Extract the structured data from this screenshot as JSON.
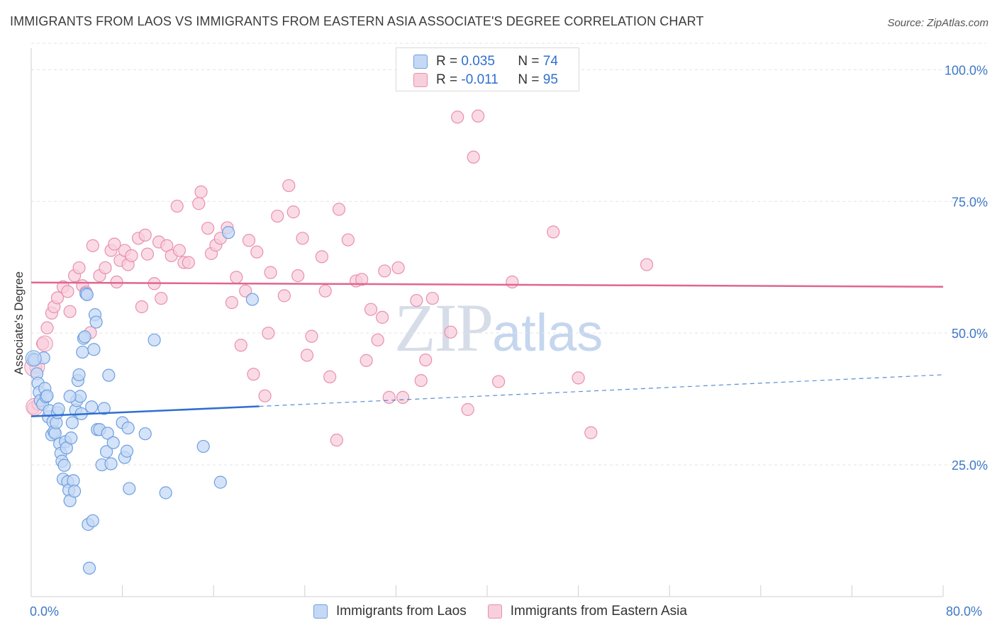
{
  "title": "IMMIGRANTS FROM LAOS VS IMMIGRANTS FROM EASTERN ASIA ASSOCIATE'S DEGREE CORRELATION CHART",
  "source": "Source: ZipAtlas.com",
  "watermark": {
    "zip": "ZIP",
    "atlas": "atlas"
  },
  "legend_top": [
    {
      "r_label": "R = ",
      "r_value": "0.035",
      "n_label": "N = ",
      "n_value": "74"
    },
    {
      "r_label": "R = ",
      "r_value": "-0.011",
      "n_label": "N = ",
      "n_value": "95"
    }
  ],
  "colors": {
    "laos_fill": "#c5d9f5",
    "laos_stroke": "#6f9fe0",
    "laos_line": "#2f6fd0",
    "asia_fill": "#f8cfdc",
    "asia_stroke": "#e890ad",
    "asia_line": "#e0668e",
    "grid": "#e3e3e3",
    "tick_label": "#3f78c8"
  },
  "chart_data": {
    "type": "scatter",
    "title": "IMMIGRANTS FROM LAOS VS IMMIGRANTS FROM EASTERN ASIA ASSOCIATE'S DEGREE CORRELATION CHART",
    "xlabel": "",
    "ylabel": "Associate's Degree",
    "xlim": [
      0,
      80
    ],
    "ylim": [
      0,
      106.5
    ],
    "x_tick_labels": [
      "0.0%",
      "80.0%"
    ],
    "y_ticks": [
      25,
      50,
      75,
      100
    ],
    "y_tick_labels": [
      "25.0%",
      "50.0%",
      "75.0%",
      "100.0%"
    ],
    "legend_position": "top-center",
    "series": [
      {
        "name": "Immigrants from Laos",
        "r": 0.035,
        "n": 74,
        "trend": {
          "x0": 0,
          "y0": 34.2,
          "x1": 20,
          "y1": 36.1,
          "dashed_to_x": 80,
          "dashed_to_y": 42.1
        },
        "points": [
          [
            0.2,
            45.1
          ],
          [
            0.3,
            44.9
          ],
          [
            0.5,
            42.3
          ],
          [
            0.6,
            40.5
          ],
          [
            0.7,
            38.8
          ],
          [
            0.8,
            37.2
          ],
          [
            1.0,
            36.5
          ],
          [
            1.2,
            39.5
          ],
          [
            1.3,
            37.9
          ],
          [
            1.4,
            38.1
          ],
          [
            1.5,
            34.1
          ],
          [
            1.6,
            35.3
          ],
          [
            1.8,
            30.7
          ],
          [
            1.9,
            33.2
          ],
          [
            2.0,
            31.3
          ],
          [
            2.1,
            31.0
          ],
          [
            2.2,
            33.0
          ],
          [
            2.3,
            34.9
          ],
          [
            2.4,
            35.6
          ],
          [
            2.5,
            29.0
          ],
          [
            2.6,
            27.2
          ],
          [
            2.7,
            25.7
          ],
          [
            2.8,
            22.3
          ],
          [
            2.9,
            24.9
          ],
          [
            3.0,
            29.4
          ],
          [
            3.1,
            28.2
          ],
          [
            3.2,
            21.8
          ],
          [
            3.3,
            20.2
          ],
          [
            3.4,
            18.2
          ],
          [
            3.5,
            30.1
          ],
          [
            3.6,
            33.0
          ],
          [
            3.7,
            22.0
          ],
          [
            3.8,
            20.0
          ],
          [
            3.9,
            35.4
          ],
          [
            4.0,
            37.2
          ],
          [
            4.1,
            41.0
          ],
          [
            4.2,
            42.1
          ],
          [
            4.3,
            38.0
          ],
          [
            4.4,
            34.7
          ],
          [
            4.5,
            46.4
          ],
          [
            4.6,
            49.0
          ],
          [
            4.7,
            49.3
          ],
          [
            4.8,
            57.5
          ],
          [
            4.9,
            57.3
          ],
          [
            5.0,
            13.7
          ],
          [
            5.1,
            5.4
          ],
          [
            5.3,
            36.0
          ],
          [
            5.4,
            14.4
          ],
          [
            5.5,
            46.9
          ],
          [
            5.6,
            53.5
          ],
          [
            5.7,
            52.1
          ],
          [
            5.8,
            31.7
          ],
          [
            6.0,
            31.7
          ],
          [
            6.2,
            25.0
          ],
          [
            6.4,
            35.7
          ],
          [
            6.6,
            27.5
          ],
          [
            6.7,
            31.0
          ],
          [
            6.8,
            42.0
          ],
          [
            7.0,
            25.2
          ],
          [
            7.2,
            29.2
          ],
          [
            8.0,
            33.0
          ],
          [
            8.2,
            26.4
          ],
          [
            8.4,
            27.6
          ],
          [
            8.5,
            32.0
          ],
          [
            8.6,
            20.5
          ],
          [
            10.0,
            30.9
          ],
          [
            10.8,
            48.7
          ],
          [
            11.8,
            19.7
          ],
          [
            15.1,
            28.5
          ],
          [
            16.6,
            21.7
          ],
          [
            17.3,
            69.1
          ],
          [
            19.4,
            56.4
          ],
          [
            3.4,
            38.0
          ],
          [
            1.1,
            45.3
          ]
        ]
      },
      {
        "name": "Immigrants from Eastern Asia",
        "r": -0.011,
        "n": 95,
        "trend": {
          "x0": 0,
          "y0": 59.6,
          "x1": 80,
          "y1": 58.8
        },
        "points": [
          [
            0.2,
            35.8
          ],
          [
            0.4,
            43.5
          ],
          [
            0.6,
            36.5
          ],
          [
            1.0,
            48.0
          ],
          [
            1.4,
            51.0
          ],
          [
            1.8,
            53.8
          ],
          [
            2.0,
            55.0
          ],
          [
            2.3,
            56.7
          ],
          [
            2.8,
            58.8
          ],
          [
            3.2,
            57.9
          ],
          [
            3.4,
            54.1
          ],
          [
            3.8,
            60.9
          ],
          [
            4.2,
            62.4
          ],
          [
            4.5,
            59.0
          ],
          [
            4.8,
            57.8
          ],
          [
            5.2,
            50.1
          ],
          [
            5.4,
            66.6
          ],
          [
            6.0,
            60.9
          ],
          [
            6.5,
            62.4
          ],
          [
            7.0,
            65.7
          ],
          [
            7.3,
            66.9
          ],
          [
            7.5,
            59.7
          ],
          [
            7.8,
            63.8
          ],
          [
            8.2,
            65.7
          ],
          [
            8.5,
            63.0
          ],
          [
            8.8,
            64.7
          ],
          [
            9.4,
            68.0
          ],
          [
            9.7,
            55.0
          ],
          [
            10.0,
            68.6
          ],
          [
            10.2,
            65.0
          ],
          [
            10.8,
            59.4
          ],
          [
            11.2,
            67.3
          ],
          [
            11.4,
            56.6
          ],
          [
            11.9,
            66.6
          ],
          [
            12.3,
            64.7
          ],
          [
            12.8,
            74.1
          ],
          [
            13.0,
            65.7
          ],
          [
            13.4,
            63.4
          ],
          [
            13.8,
            63.4
          ],
          [
            14.7,
            74.6
          ],
          [
            14.9,
            76.8
          ],
          [
            15.5,
            69.9
          ],
          [
            15.8,
            65.1
          ],
          [
            16.2,
            66.7
          ],
          [
            16.6,
            68.0
          ],
          [
            17.2,
            70.0
          ],
          [
            17.6,
            55.8
          ],
          [
            18.0,
            60.6
          ],
          [
            18.4,
            47.7
          ],
          [
            18.8,
            58.0
          ],
          [
            19.1,
            67.6
          ],
          [
            19.5,
            42.2
          ],
          [
            19.8,
            65.4
          ],
          [
            20.5,
            38.1
          ],
          [
            20.8,
            50.0
          ],
          [
            21.0,
            61.5
          ],
          [
            21.6,
            72.2
          ],
          [
            22.2,
            57.1
          ],
          [
            22.6,
            78.0
          ],
          [
            23.0,
            73.0
          ],
          [
            23.4,
            60.9
          ],
          [
            23.8,
            68.0
          ],
          [
            24.2,
            45.8
          ],
          [
            24.6,
            49.4
          ],
          [
            25.5,
            64.5
          ],
          [
            25.8,
            58.0
          ],
          [
            26.2,
            41.7
          ],
          [
            26.8,
            29.7
          ],
          [
            27.0,
            73.5
          ],
          [
            27.8,
            67.7
          ],
          [
            28.5,
            59.9
          ],
          [
            29.0,
            60.2
          ],
          [
            29.4,
            44.8
          ],
          [
            29.8,
            54.5
          ],
          [
            30.4,
            48.7
          ],
          [
            30.8,
            53.0
          ],
          [
            31.0,
            61.8
          ],
          [
            31.4,
            37.8
          ],
          [
            32.2,
            62.4
          ],
          [
            32.6,
            37.8
          ],
          [
            33.8,
            56.2
          ],
          [
            34.2,
            41.0
          ],
          [
            34.6,
            44.9
          ],
          [
            35.2,
            56.6
          ],
          [
            36.8,
            50.2
          ],
          [
            37.4,
            91.0
          ],
          [
            38.3,
            35.5
          ],
          [
            38.8,
            83.4
          ],
          [
            39.2,
            91.2
          ],
          [
            41.0,
            40.8
          ],
          [
            42.2,
            59.7
          ],
          [
            45.8,
            69.2
          ],
          [
            48.0,
            41.5
          ],
          [
            49.1,
            31.1
          ],
          [
            54.0,
            63.0
          ]
        ]
      }
    ]
  },
  "bottom_legend": [
    "Immigrants from Laos",
    "Immigrants from Eastern Asia"
  ],
  "x_axis": {
    "min_label": "0.0%",
    "max_label": "80.0%"
  }
}
